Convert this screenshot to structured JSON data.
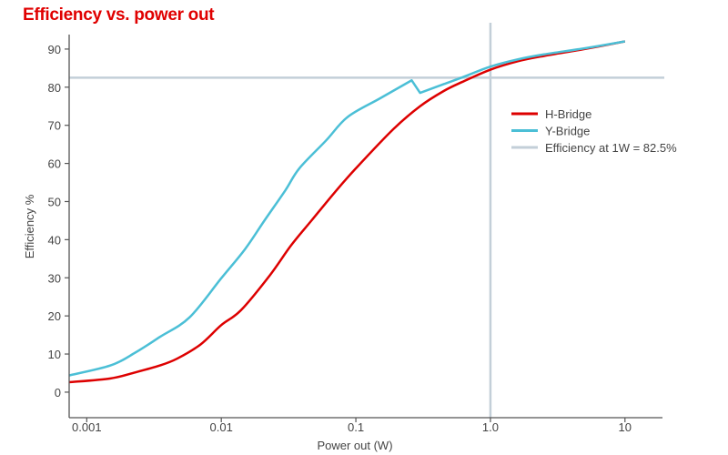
{
  "chart_data": {
    "type": "line",
    "title": "Efficiency vs. power out",
    "xlabel": "Power out (W)",
    "ylabel": "Efficiency %",
    "xscale": "log",
    "xlim": [
      0.00074,
      19
    ],
    "ylim": [
      -6.7,
      93.8
    ],
    "xticks": [
      {
        "v": 0.001,
        "label": "0.001"
      },
      {
        "v": 0.01,
        "label": "0.01"
      },
      {
        "v": 0.1,
        "label": "0.1"
      },
      {
        "v": 1,
        "label": "1.0"
      },
      {
        "v": 10,
        "label": "10"
      }
    ],
    "yticks": [
      0,
      10,
      20,
      30,
      40,
      50,
      60,
      70,
      80,
      90
    ],
    "grid": false,
    "legend_position": "right",
    "colors": {
      "h": "#dd0000",
      "y": "#4bbfd6",
      "ref": "#c3cfd8",
      "axis": "#555555"
    },
    "series": [
      {
        "name": "H-Bridge",
        "color": "#dd0000",
        "points": [
          [
            0.00074,
            2.6
          ],
          [
            0.0015,
            3.6
          ],
          [
            0.0023,
            5.2
          ],
          [
            0.0035,
            7.0
          ],
          [
            0.0047,
            8.8
          ],
          [
            0.007,
            12.5
          ],
          [
            0.01,
            17.6
          ],
          [
            0.014,
            21.5
          ],
          [
            0.023,
            30.7
          ],
          [
            0.033,
            38.5
          ],
          [
            0.047,
            45.1
          ],
          [
            0.07,
            52.5
          ],
          [
            0.1,
            58.7
          ],
          [
            0.19,
            69
          ],
          [
            0.3,
            75
          ],
          [
            0.45,
            79
          ],
          [
            0.62,
            81.4
          ],
          [
            1,
            84.6
          ],
          [
            1.6,
            86.8
          ],
          [
            2.5,
            88.2
          ],
          [
            5,
            90
          ],
          [
            10,
            92
          ]
        ]
      },
      {
        "name": "Y-Bridge",
        "color": "#4bbfd6",
        "points": [
          [
            0.00074,
            4.4
          ],
          [
            0.0015,
            7.0
          ],
          [
            0.0023,
            10.4
          ],
          [
            0.0035,
            14.5
          ],
          [
            0.0058,
            19.6
          ],
          [
            0.01,
            29.9
          ],
          [
            0.015,
            37.5
          ],
          [
            0.021,
            45.1
          ],
          [
            0.03,
            53
          ],
          [
            0.038,
            58.7
          ],
          [
            0.06,
            66
          ],
          [
            0.087,
            72.2
          ],
          [
            0.15,
            77
          ],
          [
            0.26,
            81.8
          ],
          [
            0.3,
            78.5
          ],
          [
            0.45,
            80.8
          ],
          [
            0.62,
            82.6
          ],
          [
            1,
            85.4
          ],
          [
            1.6,
            87.3
          ],
          [
            2.5,
            88.6
          ],
          [
            5,
            90.2
          ],
          [
            10,
            92
          ]
        ]
      },
      {
        "name": "Efficiency at 1W = 82.5%",
        "color": "#c3cfd8",
        "type": "reference",
        "y": 82.5,
        "x": 1
      }
    ]
  }
}
